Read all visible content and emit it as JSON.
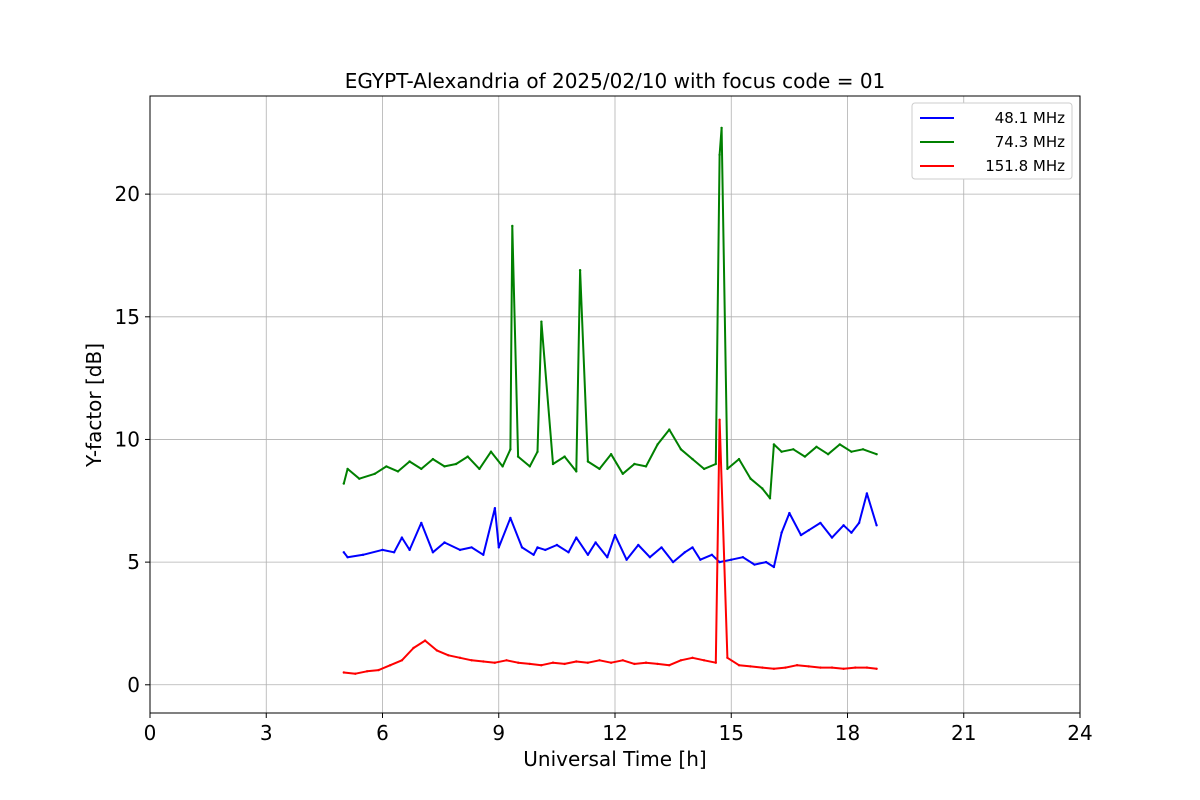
{
  "chart_data": {
    "type": "line",
    "title": "EGYPT-Alexandria of 2025/02/10 with focus code = 01",
    "xlabel": "Universal Time [h]",
    "ylabel": "Y-factor [dB]",
    "xlim": [
      0,
      24
    ],
    "ylim": [
      -1.15,
      24
    ],
    "xticks": [
      0,
      3,
      6,
      9,
      12,
      15,
      18,
      21,
      24
    ],
    "yticks": [
      0,
      5,
      10,
      15,
      20
    ],
    "grid": true,
    "legend_position": "top-right",
    "series": [
      {
        "name": "48.1 MHz",
        "color": "#0000ff",
        "x": [
          5.0,
          5.1,
          5.5,
          6.0,
          6.3,
          6.5,
          6.7,
          7.0,
          7.3,
          7.6,
          8.0,
          8.3,
          8.6,
          8.9,
          9.0,
          9.3,
          9.6,
          9.9,
          10.0,
          10.2,
          10.5,
          10.8,
          11.0,
          11.3,
          11.5,
          11.8,
          12.0,
          12.3,
          12.6,
          12.9,
          13.2,
          13.5,
          13.8,
          14.0,
          14.2,
          14.5,
          14.7,
          15.0,
          15.3,
          15.6,
          15.9,
          16.1,
          16.3,
          16.5,
          16.8,
          17.0,
          17.3,
          17.6,
          17.9,
          18.1,
          18.3,
          18.5,
          18.75
        ],
        "y": [
          5.4,
          5.2,
          5.3,
          5.5,
          5.4,
          6.0,
          5.5,
          6.6,
          5.4,
          5.8,
          5.5,
          5.6,
          5.3,
          7.2,
          5.6,
          6.8,
          5.6,
          5.3,
          5.6,
          5.5,
          5.7,
          5.4,
          6.0,
          5.3,
          5.8,
          5.2,
          6.1,
          5.1,
          5.7,
          5.2,
          5.6,
          5.0,
          5.4,
          5.6,
          5.1,
          5.3,
          5.0,
          5.1,
          5.2,
          4.9,
          5.0,
          4.8,
          6.2,
          7.0,
          6.1,
          6.3,
          6.6,
          6.0,
          6.5,
          6.2,
          6.6,
          7.8,
          6.5
        ]
      },
      {
        "name": "74.3 MHz",
        "color": "#008000",
        "x": [
          5.0,
          5.1,
          5.4,
          5.8,
          6.1,
          6.4,
          6.7,
          7.0,
          7.3,
          7.6,
          7.9,
          8.2,
          8.5,
          8.8,
          9.1,
          9.3,
          9.35,
          9.5,
          9.8,
          10.0,
          10.1,
          10.4,
          10.7,
          11.0,
          11.1,
          11.3,
          11.6,
          11.9,
          12.2,
          12.5,
          12.8,
          13.1,
          13.4,
          13.7,
          14.0,
          14.3,
          14.6,
          14.7,
          14.75,
          14.9,
          15.2,
          15.5,
          15.8,
          16.0,
          16.1,
          16.3,
          16.6,
          16.9,
          17.2,
          17.5,
          17.8,
          18.1,
          18.4,
          18.75
        ],
        "y": [
          8.2,
          8.8,
          8.4,
          8.6,
          8.9,
          8.7,
          9.1,
          8.8,
          9.2,
          8.9,
          9.0,
          9.3,
          8.8,
          9.5,
          8.9,
          9.6,
          18.7,
          9.3,
          8.9,
          9.5,
          14.8,
          9.0,
          9.3,
          8.7,
          16.9,
          9.1,
          8.8,
          9.4,
          8.6,
          9.0,
          8.9,
          9.8,
          10.4,
          9.6,
          9.2,
          8.8,
          9.0,
          21.6,
          22.7,
          8.8,
          9.2,
          8.4,
          8.0,
          7.6,
          9.8,
          9.5,
          9.6,
          9.3,
          9.7,
          9.4,
          9.8,
          9.5,
          9.6,
          9.4
        ]
      },
      {
        "name": "151.8 MHz",
        "color": "#ff0000",
        "x": [
          5.0,
          5.3,
          5.6,
          5.9,
          6.2,
          6.5,
          6.8,
          7.1,
          7.4,
          7.7,
          8.0,
          8.3,
          8.6,
          8.9,
          9.2,
          9.5,
          9.8,
          10.1,
          10.4,
          10.7,
          11.0,
          11.3,
          11.6,
          11.9,
          12.2,
          12.5,
          12.8,
          13.1,
          13.4,
          13.7,
          14.0,
          14.3,
          14.6,
          14.7,
          14.9,
          15.2,
          15.5,
          15.8,
          16.1,
          16.4,
          16.7,
          17.0,
          17.3,
          17.6,
          17.9,
          18.2,
          18.5,
          18.75
        ],
        "y": [
          0.5,
          0.45,
          0.55,
          0.6,
          0.8,
          1.0,
          1.5,
          1.8,
          1.4,
          1.2,
          1.1,
          1.0,
          0.95,
          0.9,
          1.0,
          0.9,
          0.85,
          0.8,
          0.9,
          0.85,
          0.95,
          0.9,
          1.0,
          0.9,
          1.0,
          0.85,
          0.9,
          0.85,
          0.8,
          1.0,
          1.1,
          1.0,
          0.9,
          10.8,
          1.1,
          0.8,
          0.75,
          0.7,
          0.65,
          0.7,
          0.8,
          0.75,
          0.7,
          0.7,
          0.65,
          0.7,
          0.7,
          0.65
        ]
      }
    ]
  }
}
